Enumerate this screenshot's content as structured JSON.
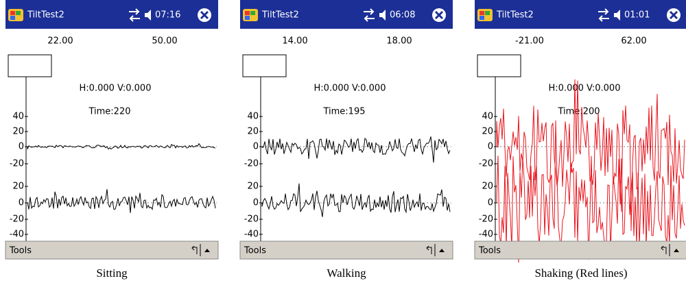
{
  "screens": [
    {
      "titlebar": {
        "app": "TiltTest2",
        "time": "07:16"
      },
      "readings": [
        "22.00",
        "50.00"
      ],
      "status": "H:0.000 V:0.000",
      "time_label": "Time:220",
      "axis_top": [
        "40",
        "20",
        "0",
        "-20"
      ],
      "axis_bottom": [
        "20",
        "0",
        "-20",
        "-40"
      ],
      "menu": "Tools",
      "caption": "Sitting"
    },
    {
      "titlebar": {
        "app": "TiltTest2",
        "time": "06:08"
      },
      "readings": [
        "14.00",
        "18.00"
      ],
      "status": "H:0.000 V:0.000",
      "time_label": "Time:195",
      "axis_top": [
        "40",
        "20",
        "0",
        "-20"
      ],
      "axis_bottom": [
        "20",
        "0",
        "-20",
        "-40"
      ],
      "menu": "Tools",
      "caption": "Walking"
    },
    {
      "titlebar": {
        "app": "TiltTest2",
        "time": "01:01"
      },
      "readings": [
        "-21.00",
        "62.00"
      ],
      "status": "H:0.000 V:0.000",
      "time_label": "Time:200",
      "axis_top": [
        "40",
        "20",
        "0",
        "-20"
      ],
      "axis_bottom": [
        "20",
        "0",
        "-20",
        "-40"
      ],
      "menu": "Tools",
      "caption": "Shaking (Red lines)"
    }
  ]
}
